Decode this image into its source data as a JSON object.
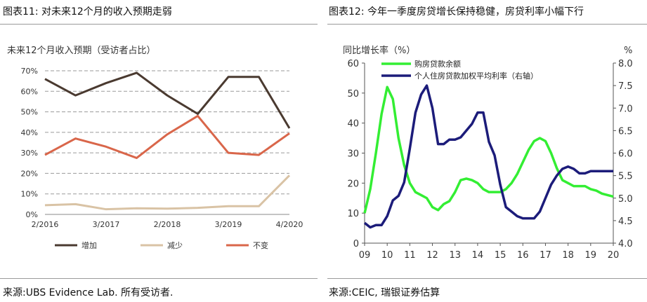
{
  "left": {
    "fig_title": "图表11: 对未来12个月的收入预期走弱",
    "source": "来源:UBS Evidence Lab. 所有受访者.",
    "chart_data": {
      "type": "line",
      "title": "未来12个月收入预期（受访者占比）",
      "x": [
        0,
        1,
        2,
        3,
        4,
        5,
        6,
        7,
        8
      ],
      "xticks": [
        "2/2016",
        "3/2017",
        "2/2018",
        "3/2019",
        "4/2020"
      ],
      "xtick_positions": [
        0,
        2,
        4,
        6,
        8
      ],
      "yticks": [
        "0%",
        "10%",
        "20%",
        "30%",
        "40%",
        "50%",
        "60%",
        "70%"
      ],
      "ylim": [
        0,
        70
      ],
      "grid": "horizontal-dashed",
      "legend_position": "bottom",
      "series": [
        {
          "name": "增加",
          "color": "#4a3a30",
          "values": [
            66,
            58,
            64,
            69,
            58,
            49,
            67,
            67,
            42
          ]
        },
        {
          "name": "减少",
          "color": "#d9c3a5",
          "values": [
            4.5,
            5,
            2.5,
            3,
            2.8,
            3.2,
            4,
            4,
            19
          ]
        },
        {
          "name": "不变",
          "color": "#d9664a",
          "values": [
            29,
            37,
            33,
            27.5,
            39,
            48,
            30,
            29,
            39.5
          ]
        }
      ]
    }
  },
  "right": {
    "fig_title": "图表12: 今年一季度房贷增长保持稳健，房贷利率小幅下行",
    "source": "来源:CEIC, 瑞银证券估算",
    "chart_data": {
      "type": "line",
      "ylabel_left": "同比增长率（%）",
      "ylabel_right": "%",
      "ylim_left": [
        0,
        60
      ],
      "ylim_right": [
        4.0,
        8.0
      ],
      "yticks_left": [
        "0",
        "10",
        "20",
        "30",
        "40",
        "50",
        "60"
      ],
      "yticks_right": [
        "4.0",
        "4.5",
        "5.0",
        "5.5",
        "6.0",
        "6.5",
        "7.0",
        "7.5",
        "8.0"
      ],
      "xlim": [
        2009,
        2020
      ],
      "xticks": [
        "09",
        "10",
        "11",
        "12",
        "13",
        "14",
        "15",
        "16",
        "17",
        "18",
        "19",
        "20"
      ],
      "grid": "none",
      "legend_position": "top-left",
      "series": [
        {
          "name": "购房贷款余额",
          "axis": "left",
          "color": "#33ee33",
          "x": [
            2009.0,
            2009.25,
            2009.5,
            2009.75,
            2010.0,
            2010.25,
            2010.5,
            2010.75,
            2011.0,
            2011.25,
            2011.5,
            2011.75,
            2012.0,
            2012.25,
            2012.5,
            2012.75,
            2013.0,
            2013.25,
            2013.5,
            2013.75,
            2014.0,
            2014.25,
            2014.5,
            2014.75,
            2015.0,
            2015.25,
            2015.5,
            2015.75,
            2016.0,
            2016.25,
            2016.5,
            2016.75,
            2017.0,
            2017.25,
            2017.5,
            2017.75,
            2018.0,
            2018.25,
            2018.5,
            2018.75,
            2019.0,
            2019.25,
            2019.5,
            2019.75,
            2020.0
          ],
          "values": [
            10,
            18,
            30,
            43,
            52,
            48,
            35,
            26,
            20,
            17,
            16,
            15,
            12,
            11,
            13,
            14,
            17,
            21,
            21.5,
            21,
            20,
            18,
            17,
            17,
            17,
            18,
            20,
            23,
            27,
            31,
            34,
            35,
            34,
            30,
            25,
            21,
            20,
            19,
            19,
            19,
            18,
            17.5,
            16.5,
            16,
            15.5
          ]
        },
        {
          "name": "个人住房贷款加权平均利率（右轴）",
          "axis": "right",
          "color": "#1c1c7a",
          "x": [
            2009.0,
            2009.25,
            2009.5,
            2009.75,
            2010.0,
            2010.25,
            2010.5,
            2010.75,
            2011.0,
            2011.25,
            2011.5,
            2011.75,
            2012.0,
            2012.25,
            2012.5,
            2012.75,
            2013.0,
            2013.25,
            2013.5,
            2013.75,
            2014.0,
            2014.25,
            2014.5,
            2014.75,
            2015.0,
            2015.25,
            2015.5,
            2015.75,
            2016.0,
            2016.25,
            2016.5,
            2016.75,
            2017.0,
            2017.25,
            2017.5,
            2017.75,
            2018.0,
            2018.25,
            2018.5,
            2018.75,
            2019.0,
            2019.25,
            2019.5,
            2019.75,
            2020.0
          ],
          "values": [
            4.45,
            4.35,
            4.4,
            4.4,
            4.6,
            4.95,
            5.05,
            5.35,
            6.1,
            6.9,
            7.3,
            7.5,
            7.0,
            6.2,
            6.2,
            6.3,
            6.3,
            6.35,
            6.5,
            6.65,
            6.9,
            6.9,
            6.25,
            5.95,
            5.3,
            4.8,
            4.7,
            4.6,
            4.55,
            4.55,
            4.55,
            4.7,
            5.0,
            5.3,
            5.5,
            5.65,
            5.7,
            5.65,
            5.55,
            5.55,
            5.6,
            5.6,
            5.6,
            5.6,
            5.6
          ]
        }
      ]
    }
  }
}
